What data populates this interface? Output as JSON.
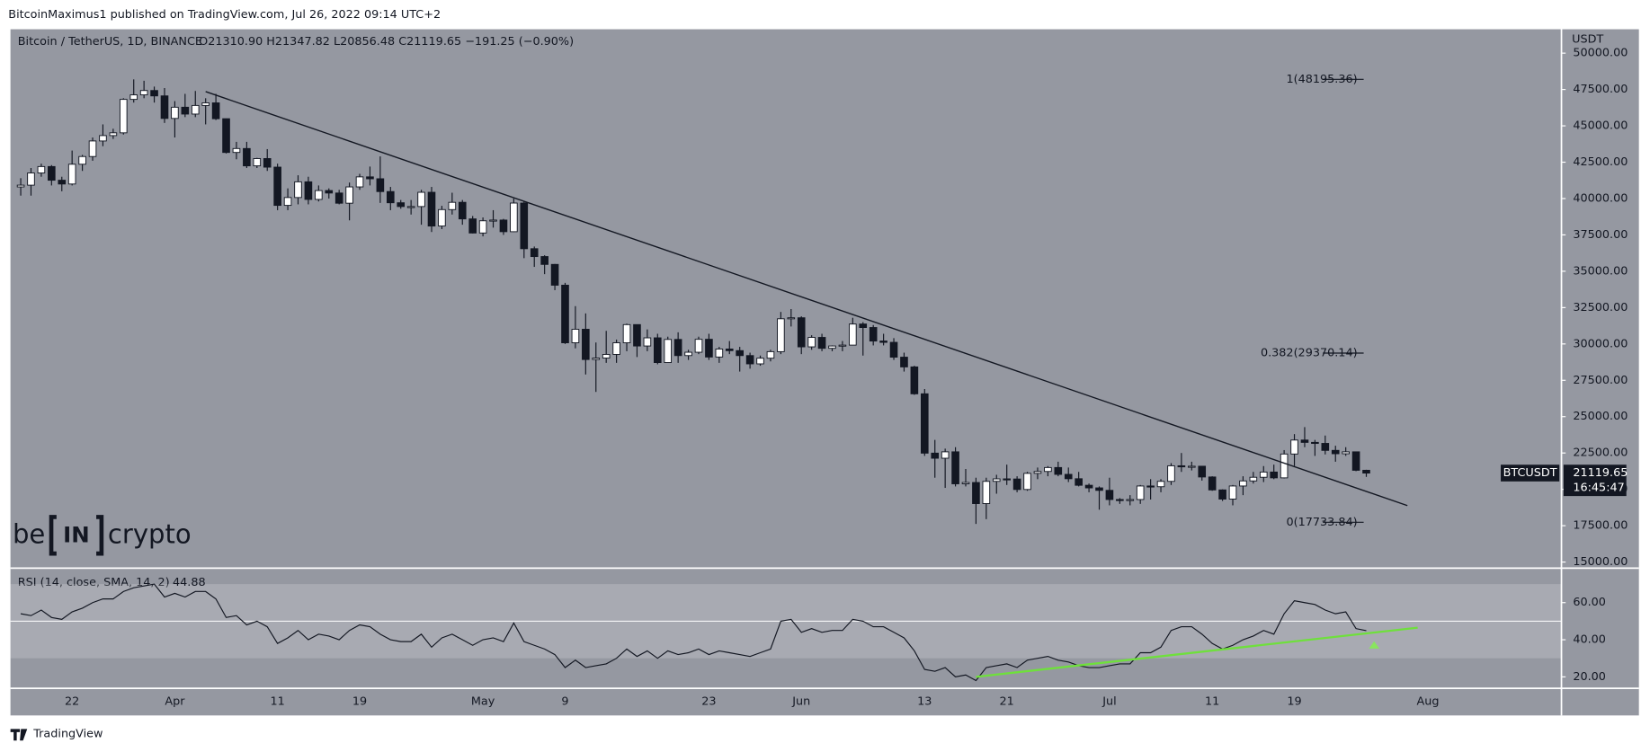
{
  "header": {
    "publisher": "BitcoinMaximus1 published on TradingView.com, Jul 26, 2022 09:14 UTC+2",
    "footer": "TradingView",
    "watermark": [
      "be",
      "IN",
      "crypto"
    ]
  },
  "chart_data": [
    {
      "type": "candlestick",
      "title": "Bitcoin / TetherUS, 1D, BINANCE",
      "ohlc_text": "O21310.90 H21347.82 L20856.48 C21119.65 −191.25 (−0.90%)",
      "axis_unit": "USDT",
      "symbol": "BTCUSDT",
      "countdown": "16:45:47",
      "x": [
        "2022-03-17",
        "2022-03-18",
        "2022-03-19",
        "2022-03-20",
        "2022-03-21",
        "2022-03-22",
        "2022-03-23",
        "2022-03-24",
        "2022-03-25",
        "2022-03-26",
        "2022-03-27",
        "2022-03-28",
        "2022-03-29",
        "2022-03-30",
        "2022-03-31",
        "2022-04-01",
        "2022-04-02",
        "2022-04-03",
        "2022-04-04",
        "2022-04-05",
        "2022-04-06",
        "2022-04-07",
        "2022-04-08",
        "2022-04-09",
        "2022-04-10",
        "2022-04-11",
        "2022-04-12",
        "2022-04-13",
        "2022-04-14",
        "2022-04-15",
        "2022-04-16",
        "2022-04-17",
        "2022-04-18",
        "2022-04-19",
        "2022-04-20",
        "2022-04-21",
        "2022-04-22",
        "2022-04-23",
        "2022-04-24",
        "2022-04-25",
        "2022-04-26",
        "2022-04-27",
        "2022-04-28",
        "2022-04-29",
        "2022-04-30",
        "2022-05-01",
        "2022-05-02",
        "2022-05-03",
        "2022-05-04",
        "2022-05-05",
        "2022-05-06",
        "2022-05-07",
        "2022-05-08",
        "2022-05-09",
        "2022-05-10",
        "2022-05-11",
        "2022-05-12",
        "2022-05-13",
        "2022-05-14",
        "2022-05-15",
        "2022-05-16",
        "2022-05-17",
        "2022-05-18",
        "2022-05-19",
        "2022-05-20",
        "2022-05-21",
        "2022-05-22",
        "2022-05-23",
        "2022-05-24",
        "2022-05-25",
        "2022-05-26",
        "2022-05-27",
        "2022-05-28",
        "2022-05-29",
        "2022-05-30",
        "2022-05-31",
        "2022-06-01",
        "2022-06-02",
        "2022-06-03",
        "2022-06-04",
        "2022-06-05",
        "2022-06-06",
        "2022-06-07",
        "2022-06-08",
        "2022-06-09",
        "2022-06-10",
        "2022-06-11",
        "2022-06-12",
        "2022-06-13",
        "2022-06-14",
        "2022-06-15",
        "2022-06-16",
        "2022-06-17",
        "2022-06-18",
        "2022-06-19",
        "2022-06-20",
        "2022-06-21",
        "2022-06-22",
        "2022-06-23",
        "2022-06-24",
        "2022-06-25",
        "2022-06-26",
        "2022-06-27",
        "2022-06-28",
        "2022-06-29",
        "2022-06-30",
        "2022-07-01",
        "2022-07-02",
        "2022-07-03",
        "2022-07-04",
        "2022-07-05",
        "2022-07-06",
        "2022-07-07",
        "2022-07-08",
        "2022-07-09",
        "2022-07-10",
        "2022-07-11",
        "2022-07-12",
        "2022-07-13",
        "2022-07-14",
        "2022-07-15",
        "2022-07-16",
        "2022-07-17",
        "2022-07-18",
        "2022-07-19",
        "2022-07-20",
        "2022-07-21",
        "2022-07-22",
        "2022-07-23",
        "2022-07-24",
        "2022-07-25",
        "2022-07-26"
      ],
      "open": [
        40800,
        40920,
        41760,
        42200,
        41260,
        41000,
        42360,
        42890,
        43960,
        44330,
        44520,
        46820,
        47130,
        47430,
        47060,
        45510,
        46280,
        45810,
        46400,
        46580,
        45490,
        43170,
        43440,
        42250,
        42750,
        42160,
        39530,
        40070,
        41150,
        39940,
        40550,
        40380,
        39680,
        40800,
        41490,
        41360,
        40480,
        39710,
        39450,
        39450,
        40430,
        38110,
        39240,
        39740,
        38600,
        37630,
        38470,
        38520,
        37720,
        39690,
        36550,
        36010,
        35470,
        34040,
        30080,
        31010,
        28930,
        29030,
        29280,
        30080,
        31330,
        29860,
        30420,
        28720,
        30310,
        29200,
        29430,
        30320,
        29100,
        29650,
        29540,
        29200,
        28630,
        29020,
        29470,
        31730,
        31800,
        29800,
        30450,
        29700,
        29860,
        29920,
        31370,
        31130,
        30200,
        30110,
        29090,
        28420,
        26570,
        22490,
        22140,
        22580,
        20380,
        20470,
        19020,
        20550,
        20720,
        20710,
        19990,
        21100,
        21230,
        21500,
        21030,
        20730,
        20280,
        20100,
        19930,
        19300,
        19240,
        19300,
        20230,
        20180,
        20550,
        21620,
        21590,
        21590,
        20850,
        19960,
        19330,
        20230,
        20580,
        20830,
        21190,
        20790,
        22430,
        23390,
        23230,
        23160,
        22680,
        22450,
        22580,
        21310.9
      ],
      "high": [
        41400,
        42100,
        42400,
        42300,
        41500,
        43300,
        43000,
        44200,
        45100,
        44800,
        46900,
        48195,
        48100,
        47700,
        47600,
        46700,
        47200,
        47400,
        46900,
        47200,
        45500,
        43900,
        43900,
        42800,
        43400,
        42400,
        40700,
        41600,
        41500,
        40900,
        40700,
        40600,
        41100,
        41700,
        42200,
        42900,
        40800,
        39900,
        39900,
        40600,
        40800,
        39500,
        40400,
        39900,
        38800,
        38700,
        39200,
        38600,
        40000,
        39800,
        36700,
        36100,
        35500,
        34200,
        32600,
        32100,
        30100,
        30900,
        30300,
        31400,
        31300,
        31000,
        30700,
        30500,
        30800,
        29600,
        30500,
        30700,
        29800,
        30200,
        29800,
        29400,
        29200,
        29600,
        32200,
        32400,
        31900,
        30600,
        30700,
        29900,
        30200,
        31800,
        31500,
        31300,
        30700,
        30400,
        29400,
        28500,
        26900,
        23400,
        22800,
        22900,
        21400,
        20800,
        20800,
        21000,
        21700,
        20900,
        21200,
        21500,
        21600,
        21900,
        21500,
        21200,
        20400,
        20200,
        20800,
        19400,
        19600,
        20300,
        20700,
        20700,
        21800,
        22500,
        21900,
        21600,
        20900,
        20000,
        20300,
        20900,
        21200,
        21600,
        21700,
        22700,
        23800,
        24280,
        23400,
        23700,
        23000,
        22900,
        22600,
        21347.82
      ],
      "low": [
        40200,
        40200,
        41500,
        40900,
        40500,
        40900,
        41900,
        42600,
        43600,
        44100,
        44400,
        46600,
        46900,
        46600,
        45200,
        44200,
        45600,
        45600,
        45100,
        45400,
        43100,
        42700,
        42100,
        42100,
        41900,
        39200,
        39200,
        39600,
        39600,
        39800,
        40000,
        39600,
        38500,
        40600,
        40900,
        39700,
        39200,
        39300,
        38900,
        38200,
        37700,
        37900,
        38900,
        38200,
        37600,
        37400,
        38000,
        37500,
        37700,
        35900,
        35300,
        34800,
        33700,
        30000,
        29700,
        27900,
        26700,
        28700,
        28700,
        29500,
        29100,
        29500,
        28600,
        28700,
        28700,
        28900,
        29300,
        28900,
        28700,
        29300,
        28100,
        28300,
        28500,
        28800,
        29300,
        31200,
        29300,
        29600,
        29500,
        29500,
        29500,
        29900,
        29200,
        29900,
        29900,
        28900,
        28100,
        26500,
        22300,
        20800,
        20100,
        20200,
        20200,
        17622,
        17950,
        19700,
        20300,
        19800,
        19900,
        20700,
        20900,
        20900,
        20500,
        20200,
        19800,
        18600,
        18900,
        19000,
        18900,
        19000,
        19300,
        19800,
        20300,
        21200,
        21300,
        20600,
        19900,
        19200,
        18900,
        19600,
        20400,
        20500,
        20700,
        20750,
        21600,
        22900,
        22300,
        22400,
        21900,
        22300,
        21250,
        20856.48
      ],
      "close": [
        40920,
        41760,
        42200,
        41260,
        41000,
        42360,
        42890,
        43960,
        44330,
        44520,
        46820,
        47130,
        47430,
        47060,
        45510,
        46280,
        45810,
        46400,
        46580,
        45490,
        43170,
        43440,
        42250,
        42750,
        42160,
        39530,
        40070,
        41150,
        39940,
        40550,
        40380,
        39680,
        40800,
        41490,
        41360,
        40480,
        39710,
        39450,
        39450,
        40430,
        38110,
        39240,
        39740,
        38600,
        37630,
        38470,
        38520,
        37720,
        39690,
        36550,
        36010,
        35470,
        34040,
        30080,
        31010,
        28930,
        29030,
        29280,
        30080,
        31330,
        29860,
        30420,
        28720,
        30310,
        29200,
        29430,
        30320,
        29100,
        29650,
        29540,
        29200,
        28630,
        29020,
        29470,
        31730,
        31800,
        29800,
        30450,
        29700,
        29860,
        29920,
        31370,
        31130,
        30200,
        30110,
        29090,
        28420,
        26570,
        22490,
        22140,
        22580,
        20380,
        20470,
        19020,
        20550,
        20720,
        20710,
        19990,
        21100,
        21230,
        21500,
        21030,
        20730,
        20280,
        20100,
        19930,
        19300,
        19240,
        19300,
        20230,
        20180,
        20550,
        21620,
        21590,
        21590,
        20850,
        19960,
        19330,
        20230,
        20580,
        20830,
        21190,
        20790,
        22430,
        23390,
        23230,
        23160,
        22680,
        22450,
        22580,
        21310.9,
        21119.65
      ],
      "up_color": "#ffffff",
      "down_color": "#131722",
      "xlim": [
        "2022-03-16",
        "2022-08-14"
      ],
      "xticks": [
        {
          "value": "2022-03-22",
          "label": "22"
        },
        {
          "value": "2022-04-01",
          "label": "Apr"
        },
        {
          "value": "2022-04-11",
          "label": "11"
        },
        {
          "value": "2022-04-19",
          "label": "19"
        },
        {
          "value": "2022-05-01",
          "label": "May"
        },
        {
          "value": "2022-05-09",
          "label": "9"
        },
        {
          "value": "2022-05-23",
          "label": "23"
        },
        {
          "value": "2022-06-01",
          "label": "Jun"
        },
        {
          "value": "2022-06-13",
          "label": "13"
        },
        {
          "value": "2022-06-21",
          "label": "21"
        },
        {
          "value": "2022-07-01",
          "label": "Jul"
        },
        {
          "value": "2022-07-11",
          "label": "11"
        },
        {
          "value": "2022-07-19",
          "label": "19"
        },
        {
          "value": "2022-08-01",
          "label": "Aug"
        }
      ],
      "ylim": [
        14650,
        51500
      ],
      "yticks": [
        {
          "value": 15000,
          "label": "15000.00"
        },
        {
          "value": 17500,
          "label": "17500.00"
        },
        {
          "value": 20000,
          "label": "20000.00"
        },
        {
          "value": 22500,
          "label": "22500.00"
        },
        {
          "value": 25000,
          "label": "25000.00"
        },
        {
          "value": 27500,
          "label": "27500.00"
        },
        {
          "value": 30000,
          "label": "30000.00"
        },
        {
          "value": 32500,
          "label": "32500.00"
        },
        {
          "value": 35000,
          "label": "35000.00"
        },
        {
          "value": 37500,
          "label": "37500.00"
        },
        {
          "value": 40000,
          "label": "40000.00"
        },
        {
          "value": 42500,
          "label": "42500.00"
        },
        {
          "value": 45000,
          "label": "45000.00"
        },
        {
          "value": 47500,
          "label": "47500.00"
        },
        {
          "value": 50000,
          "label": "50000.00"
        }
      ],
      "grid": false,
      "fib": [
        {
          "price": 48195.36,
          "label": "1(48195.36)"
        },
        {
          "price": 29370.14,
          "label": "0.382(29370.14)"
        },
        {
          "price": 17733.84,
          "label": "0(17733.84)"
        }
      ],
      "trendlines": [
        {
          "x": [
            "2022-04-04",
            "2022-07-30"
          ],
          "y": [
            47355,
            18883
          ],
          "color": "#131722"
        }
      ]
    },
    {
      "type": "line",
      "title": "RSI (14, close, SMA, 14, 2)",
      "color": "#131722",
      "values": [
        54,
        53,
        56,
        52,
        51,
        55,
        57,
        60,
        62,
        62,
        66,
        68,
        69,
        70,
        63,
        65,
        63,
        66,
        66,
        62,
        52,
        53,
        48,
        50,
        47,
        38,
        41,
        45,
        40,
        43,
        42,
        40,
        45,
        48,
        47,
        43,
        40,
        39,
        39,
        43,
        36,
        41,
        43,
        40,
        37,
        40,
        41,
        39,
        49,
        39,
        37,
        35,
        32,
        25,
        29,
        25,
        26,
        27,
        30,
        35,
        31,
        34,
        30,
        34,
        32,
        33,
        35,
        32,
        34,
        33,
        32,
        31,
        33,
        35,
        50,
        51,
        44,
        46,
        44,
        45,
        45,
        51,
        50,
        47,
        47,
        44,
        41,
        34,
        24,
        23,
        25,
        20,
        21,
        18,
        25,
        26,
        27,
        25,
        29,
        30,
        31,
        29,
        28,
        26,
        25,
        25,
        26,
        27,
        27,
        33,
        33,
        36,
        45,
        47,
        47,
        43,
        38,
        35,
        37,
        40,
        42,
        45,
        43,
        54,
        61,
        60,
        59,
        56,
        54,
        55,
        46,
        44.88
      ],
      "ylim": [
        14.4,
        78
      ],
      "yticks": [
        {
          "value": 20,
          "label": "20.00"
        },
        {
          "value": 40,
          "label": "40.00"
        },
        {
          "value": 60,
          "label": "60.00"
        }
      ],
      "band": [
        30,
        70
      ],
      "midline": 50,
      "trendlines": [
        {
          "x": [
            "2022-06-18",
            "2022-07-31"
          ],
          "y": [
            20,
            46.5
          ],
          "color": "#6fe03c"
        }
      ]
    }
  ]
}
